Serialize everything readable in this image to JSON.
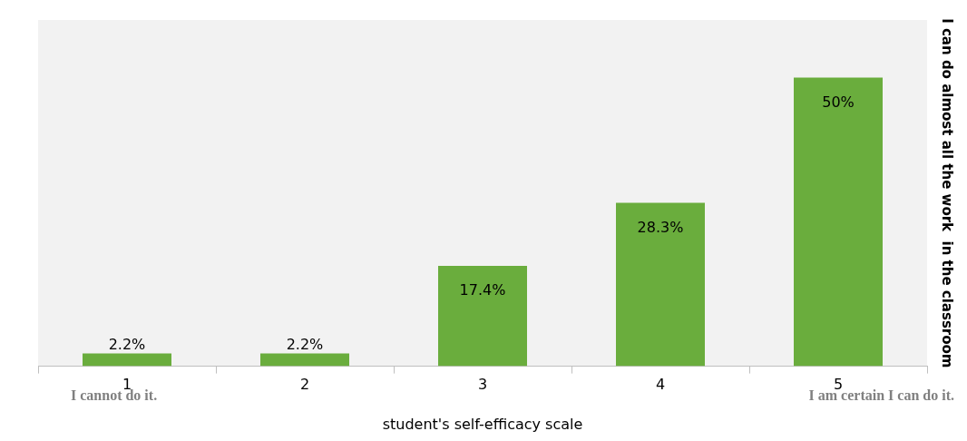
{
  "chart_data": {
    "type": "bar",
    "xlabel": "student's self-efficacy scale",
    "ylabel": "I can do almost all the work  in the classroom",
    "categories": [
      "1",
      "2",
      "3",
      "4",
      "5"
    ],
    "values": [
      2.2,
      2.2,
      17.4,
      28.3,
      50
    ],
    "value_labels": [
      "2.2%",
      "2.2%",
      "17.4%",
      "28.3%",
      "50%"
    ],
    "color": "#6aad3d",
    "grid": false,
    "legend": false,
    "annotations": [
      "I cannot do it.",
      "I am certain I can do it."
    ]
  }
}
